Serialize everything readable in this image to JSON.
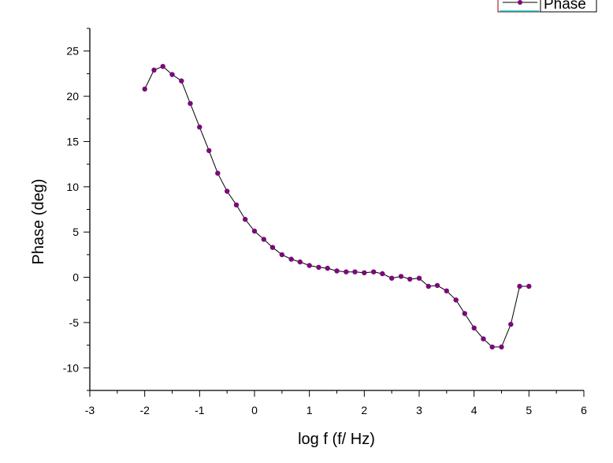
{
  "colors": {
    "series_line": "#000000",
    "series_marker": "#7a0a7a",
    "legend_border": "#8b0000",
    "legend_accent": "#00ced1"
  },
  "chart_data": {
    "type": "line",
    "title": "",
    "xlabel": "log f (f/ Hz)",
    "ylabel": "Phase (deg)",
    "xlim": [
      -3,
      6
    ],
    "ylim": [
      -12.5,
      27.5
    ],
    "xticks": [
      -3,
      -2,
      -1,
      0,
      1,
      2,
      3,
      4,
      5,
      6
    ],
    "yticks": [
      -10,
      -5,
      0,
      5,
      10,
      15,
      20,
      25
    ],
    "grid": false,
    "legend": {
      "position": "top-right",
      "entries": [
        "Phase"
      ]
    },
    "series": [
      {
        "name": "Phase",
        "marker": "circle",
        "x": [
          -2.0,
          -1.83,
          -1.67,
          -1.5,
          -1.33,
          -1.17,
          -1.0,
          -0.83,
          -0.67,
          -0.5,
          -0.33,
          -0.17,
          0.0,
          0.17,
          0.33,
          0.5,
          0.67,
          0.83,
          1.0,
          1.17,
          1.33,
          1.5,
          1.67,
          1.83,
          2.0,
          2.17,
          2.33,
          2.5,
          2.67,
          2.83,
          3.0,
          3.17,
          3.33,
          3.5,
          3.67,
          3.83,
          4.0,
          4.17,
          4.33,
          4.5,
          4.67,
          4.83,
          5.0
        ],
        "y": [
          20.8,
          22.9,
          23.3,
          22.4,
          21.7,
          19.2,
          16.6,
          14.0,
          11.5,
          9.5,
          8.0,
          6.4,
          5.1,
          4.2,
          3.3,
          2.5,
          2.0,
          1.7,
          1.3,
          1.1,
          1.0,
          0.7,
          0.6,
          0.6,
          0.5,
          0.6,
          0.4,
          -0.1,
          0.1,
          -0.2,
          -0.1,
          -1.0,
          -0.9,
          -1.5,
          -2.5,
          -4.0,
          -5.6,
          -6.8,
          -7.7,
          -7.7,
          -5.2,
          -1.0,
          -1.0
        ]
      }
    ]
  }
}
